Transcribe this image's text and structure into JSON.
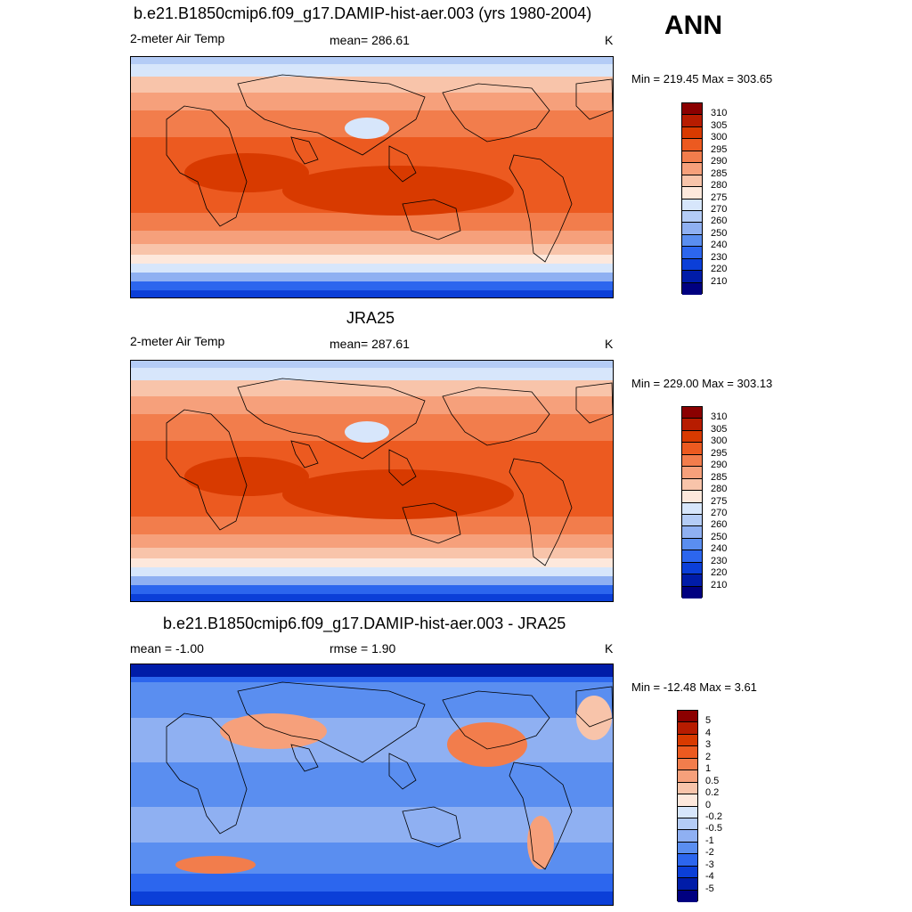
{
  "season": "ANN",
  "panels": [
    {
      "title": "b.e21.B1850cmip6.f09_g17.DAMIP-hist-aer.003 (yrs 1980-2004)",
      "left_label": "2-meter Air Temp",
      "center_label": "mean= 286.61",
      "units": "K",
      "minmax": "Min = 219.45 Max = 303.65",
      "palette": "temp",
      "colorbar": {
        "levels": [
          "310",
          "305",
          "300",
          "295",
          "290",
          "285",
          "280",
          "275",
          "270",
          "260",
          "250",
          "240",
          "230",
          "220",
          "210"
        ],
        "colors": [
          "#8b0000",
          "#b71c00",
          "#d83a00",
          "#ec5a20",
          "#f27d4c",
          "#f6a07b",
          "#f8c4aa",
          "#fde8dc",
          "#d7e6fb",
          "#b4ccf6",
          "#8fb0f2",
          "#5a8ef0",
          "#2c66ee",
          "#0b3fd8",
          "#001ca8",
          "#000080"
        ]
      }
    },
    {
      "title": "JRA25",
      "left_label": "2-meter Air Temp",
      "center_label": "mean= 287.61",
      "units": "K",
      "minmax": "Min = 229.00 Max = 303.13",
      "palette": "temp",
      "colorbar": {
        "levels": [
          "310",
          "305",
          "300",
          "295",
          "290",
          "285",
          "280",
          "275",
          "270",
          "260",
          "250",
          "240",
          "230",
          "220",
          "210"
        ],
        "colors": [
          "#8b0000",
          "#b71c00",
          "#d83a00",
          "#ec5a20",
          "#f27d4c",
          "#f6a07b",
          "#f8c4aa",
          "#fde8dc",
          "#d7e6fb",
          "#b4ccf6",
          "#8fb0f2",
          "#5a8ef0",
          "#2c66ee",
          "#0b3fd8",
          "#001ca8",
          "#000080"
        ]
      }
    },
    {
      "title": "b.e21.B1850cmip6.f09_g17.DAMIP-hist-aer.003 - JRA25",
      "left_label": "mean =  -1.00",
      "center_label": "rmse =    1.90",
      "units": "K",
      "minmax": "Min = -12.48 Max =   3.61",
      "palette": "diff",
      "colorbar": {
        "levels": [
          "5",
          "4",
          "3",
          "2",
          "1",
          "0.5",
          "0.2",
          "0",
          "-0.2",
          "-0.5",
          "-1",
          "-2",
          "-3",
          "-4",
          "-5"
        ],
        "colors": [
          "#8b0000",
          "#b71c00",
          "#d83a00",
          "#ec5a20",
          "#f27d4c",
          "#f6a07b",
          "#f8c4aa",
          "#fde8dc",
          "#d7e6fb",
          "#b4ccf6",
          "#8fb0f2",
          "#5a8ef0",
          "#2c66ee",
          "#0b3fd8",
          "#001ca8",
          "#000080"
        ]
      }
    }
  ]
}
